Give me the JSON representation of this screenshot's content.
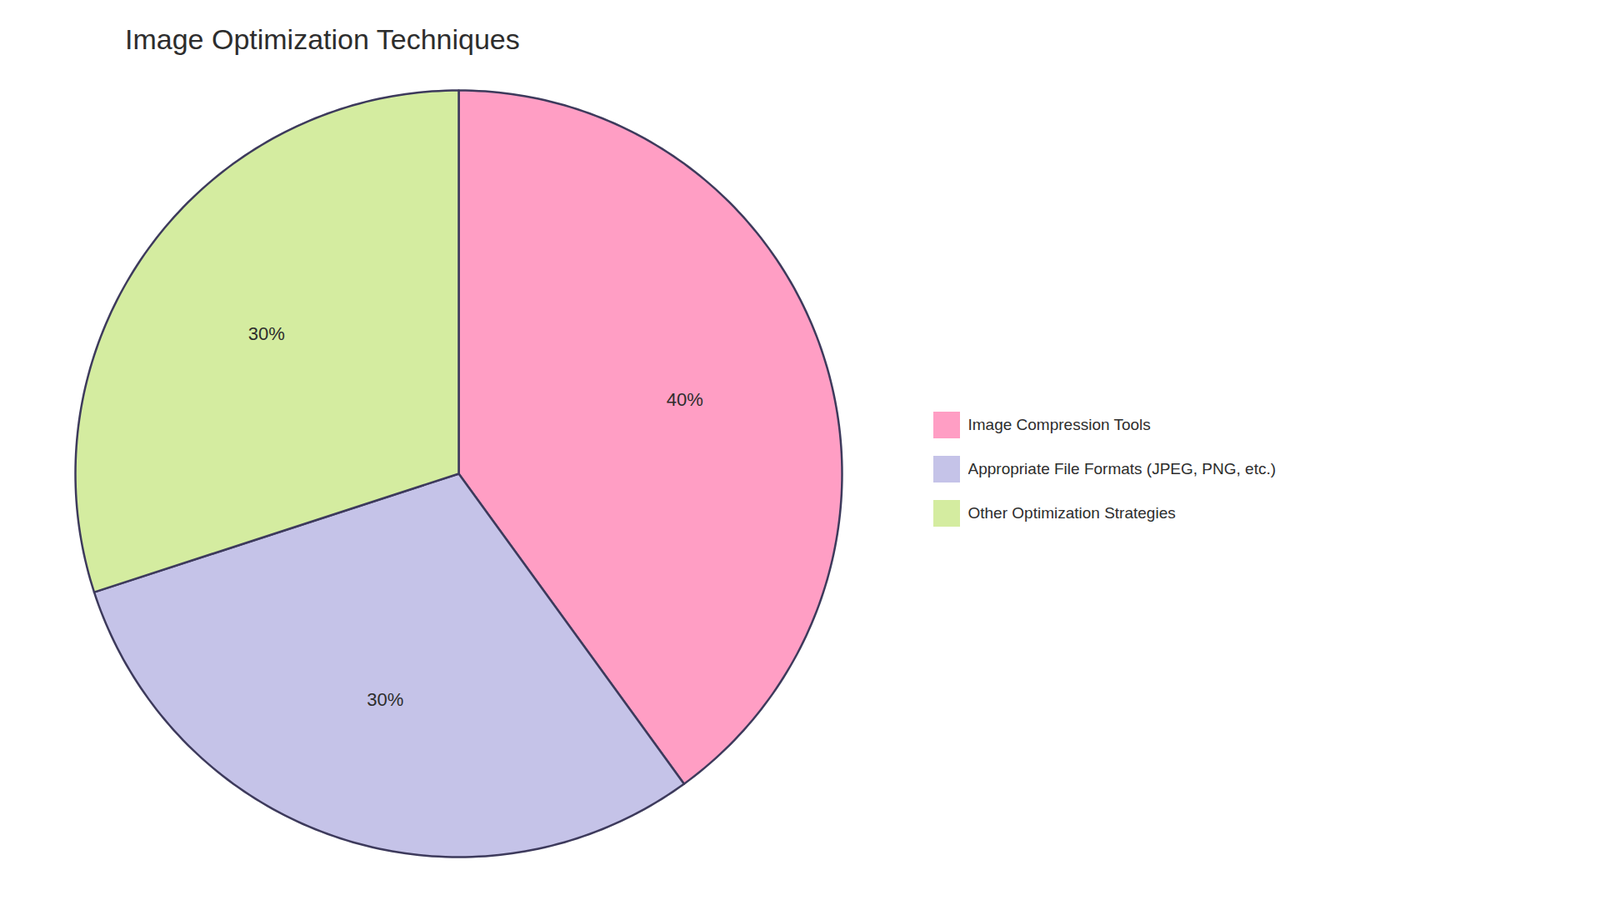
{
  "chart_data": {
    "type": "pie",
    "title": "Image Optimization Techniques",
    "categories": [
      "Image Compression Tools",
      "Appropriate File Formats (JPEG, PNG, etc.)",
      "Other Optimization Strategies"
    ],
    "values": [
      40,
      30,
      30
    ],
    "value_labels": [
      "40%",
      "30%",
      "30%"
    ],
    "colors": [
      "#FF9EC4",
      "#C5C3E8",
      "#D4ECA0"
    ],
    "data_labels": true,
    "legend": "right"
  }
}
